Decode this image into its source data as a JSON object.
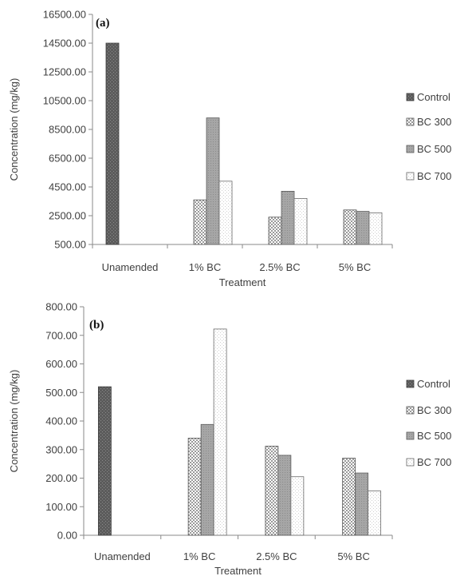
{
  "chart_data": [
    {
      "type": "bar",
      "panel_label": "(a)",
      "xlabel": "Treatment",
      "ylabel": "Concentration (mg/kg)",
      "ylim": [
        500,
        16500
      ],
      "yticks": [
        "16500.00",
        "14500.00",
        "12500.00",
        "10500.00",
        "8500.00",
        "6500.00",
        "4500.00",
        "2500.00",
        "500.00"
      ],
      "ytick_values": [
        16500,
        14500,
        12500,
        10500,
        8500,
        6500,
        4500,
        2500,
        500
      ],
      "categories": [
        "Unamended",
        "1% BC",
        "2.5% BC",
        "5% BC"
      ],
      "legend_position": "right",
      "series": [
        {
          "name": "Control",
          "values": [
            14500,
            null,
            null,
            null
          ]
        },
        {
          "name": "BC 300",
          "values": [
            null,
            3600,
            2400,
            2900
          ]
        },
        {
          "name": "BC 500",
          "values": [
            null,
            9300,
            4200,
            2800
          ]
        },
        {
          "name": "BC 700",
          "values": [
            null,
            4900,
            3700,
            2700
          ]
        }
      ]
    },
    {
      "type": "bar",
      "panel_label": "(b)",
      "xlabel": "Treatment",
      "ylabel": "Concentration (mg/kg)",
      "ylim": [
        0,
        800
      ],
      "yticks": [
        "800.00",
        "700.00",
        "600.00",
        "500.00",
        "400.00",
        "300.00",
        "200.00",
        "100.00",
        "0.00"
      ],
      "ytick_values": [
        800,
        700,
        600,
        500,
        400,
        300,
        200,
        100,
        0
      ],
      "categories": [
        "Unamended",
        "1% BC",
        "2.5% BC",
        "5% BC"
      ],
      "legend_position": "right",
      "series": [
        {
          "name": "Control",
          "values": [
            520,
            null,
            null,
            null
          ]
        },
        {
          "name": "BC 300",
          "values": [
            null,
            340,
            312,
            270
          ]
        },
        {
          "name": "BC 500",
          "values": [
            null,
            388,
            280,
            218
          ]
        },
        {
          "name": "BC 700",
          "values": [
            null,
            722,
            205,
            155
          ]
        }
      ]
    }
  ],
  "series_colors": {
    "Control": "#6e6e6e",
    "BC 300": "#ffffff",
    "BC 500": "#a9a9a9",
    "BC 700": "#ffffff"
  }
}
